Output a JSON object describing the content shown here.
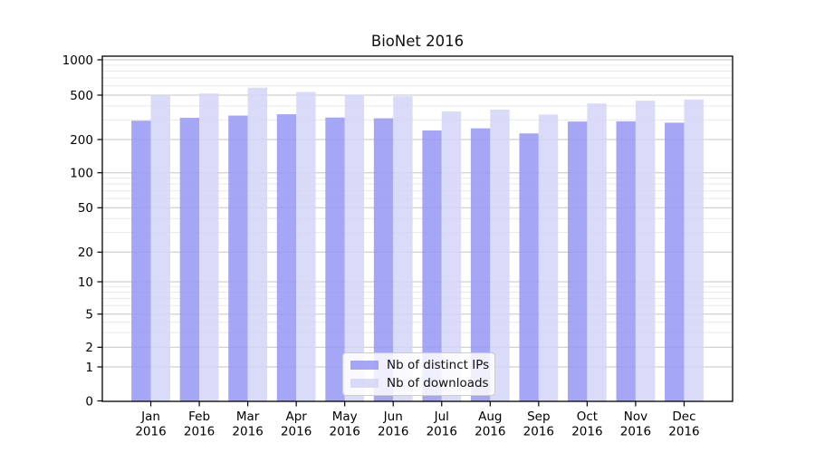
{
  "chart_data": {
    "type": "bar",
    "title": "BioNet 2016",
    "categories": [
      "Jan 2016",
      "Feb 2016",
      "Mar 2016",
      "Apr 2016",
      "May 2016",
      "Jun 2016",
      "Jul 2016",
      "Aug 2016",
      "Sep 2016",
      "Oct 2016",
      "Nov 2016",
      "Dec 2016"
    ],
    "series": [
      {
        "name": "Nb of distinct IPs",
        "color": "#9696f6",
        "values": [
          295,
          313,
          328,
          337,
          315,
          310,
          241,
          252,
          227,
          290,
          291,
          283
        ]
      },
      {
        "name": "Nb of downloads",
        "color": "#d3d3f8",
        "values": [
          500,
          516,
          579,
          532,
          505,
          488,
          357,
          371,
          335,
          421,
          446,
          457
        ]
      }
    ],
    "xlabel": "",
    "ylabel": "",
    "yscale": "symlog",
    "yticks": [
      0,
      1,
      2,
      5,
      10,
      20,
      50,
      100,
      200,
      500,
      1000
    ],
    "ylim": [
      0,
      1000
    ],
    "grid": "horizontal-major-and-minor",
    "legend_position": "lower-center",
    "bar_opacity": 0.85,
    "colors": {
      "major_grid": "#c6c6c6",
      "minor_grid": "#e9e9e9",
      "spine": "#000000"
    }
  }
}
